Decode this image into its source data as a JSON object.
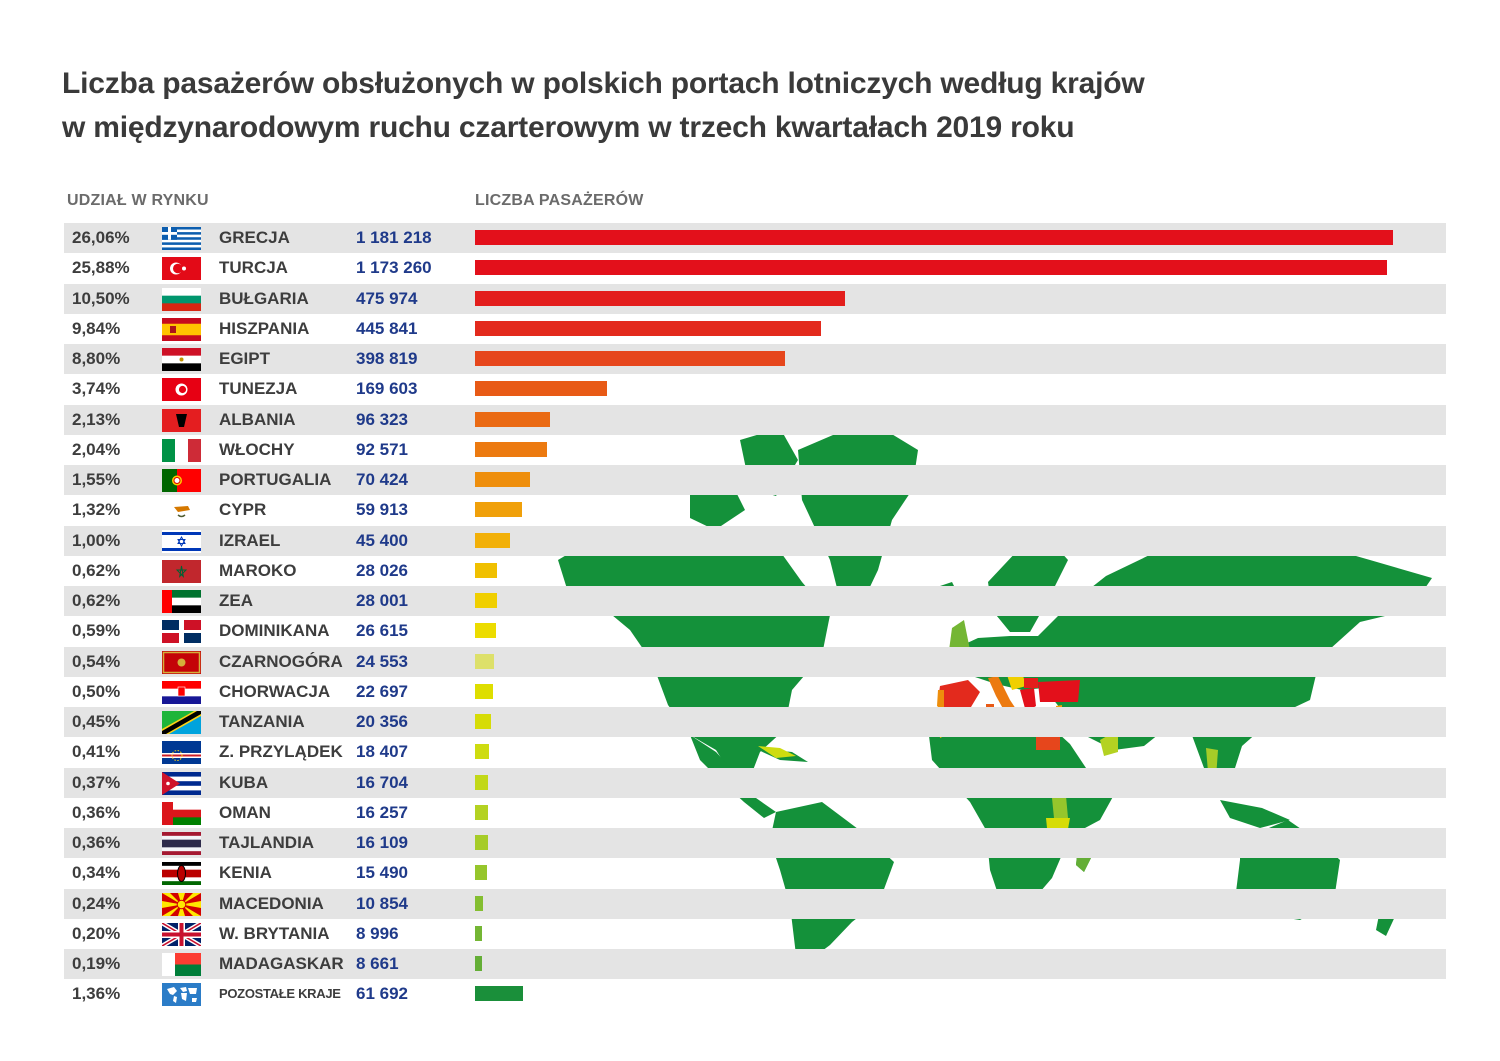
{
  "title_line1": "Liczba pasażerów obsłużonych w polskich portach lotniczych według krajów",
  "title_line2": "w międzynarodowym ruchu czarterowym w trzech kwartałach 2019 roku",
  "header_share": "UDZIAŁ W RYNKU",
  "header_count": "LICZBA PASAŻERÓW",
  "chart_data": {
    "type": "bar",
    "orientation": "horizontal",
    "title": "Liczba pasażerów obsłużonych w polskich portach lotniczych według krajów w międzynarodowym ruchu czarterowym w trzech kwartałach 2019 roku",
    "xlim": [
      0,
      1181218
    ],
    "rows": [
      {
        "share": "26,06%",
        "country": "GRECJA",
        "label": "1 181 218",
        "value": 1181218,
        "color": "#e3101b",
        "flag": "gr"
      },
      {
        "share": "25,88%",
        "country": "TURCJA",
        "label": "1 173 260",
        "value": 1173260,
        "color": "#e3101b",
        "flag": "tr"
      },
      {
        "share": "10,50%",
        "country": "BUŁGARIA",
        "label": "475 974",
        "value": 475974,
        "color": "#e31e1c",
        "flag": "bg"
      },
      {
        "share": "9,84%",
        "country": "HISZPANIA",
        "label": "445 841",
        "value": 445841,
        "color": "#e32a1d",
        "flag": "es"
      },
      {
        "share": "8,80%",
        "country": "EGIPT",
        "label": "398 819",
        "value": 398819,
        "color": "#e6461c",
        "flag": "eg"
      },
      {
        "share": "3,74%",
        "country": "TUNEZJA",
        "label": "169 603",
        "value": 169603,
        "color": "#e85a16",
        "flag": "tn"
      },
      {
        "share": "2,13%",
        "country": "ALBANIA",
        "label": "96 323",
        "value": 96323,
        "color": "#ea6a13",
        "flag": "al"
      },
      {
        "share": "2,04%",
        "country": "WŁOCHY",
        "label": "92 571",
        "value": 92571,
        "color": "#ec7a10",
        "flag": "it"
      },
      {
        "share": "1,55%",
        "country": "PORTUGALIA",
        "label": "70 424",
        "value": 70424,
        "color": "#ee8e0c",
        "flag": "pt"
      },
      {
        "share": "1,32%",
        "country": "CYPR",
        "label": "59 913",
        "value": 59913,
        "color": "#f0a00a",
        "flag": "cy"
      },
      {
        "share": "1,00%",
        "country": "IZRAEL",
        "label": "45 400",
        "value": 45400,
        "color": "#f2b008",
        "flag": "il"
      },
      {
        "share": "0,62%",
        "country": "MAROKO",
        "label": "28 026",
        "value": 28026,
        "color": "#f0c000",
        "flag": "ma"
      },
      {
        "share": "0,62%",
        "country": "ZEA",
        "label": "28 001",
        "value": 28001,
        "color": "#f0cf00",
        "flag": "ae"
      },
      {
        "share": "0,59%",
        "country": "DOMINIKANA",
        "label": "26 615",
        "value": 26615,
        "color": "#ecdc00",
        "flag": "do"
      },
      {
        "share": "0,54%",
        "country": "CZARNOGÓRA",
        "label": "24 553",
        "value": 24553,
        "color": "#dde06a",
        "flag": "me"
      },
      {
        "share": "0,50%",
        "country": "CHORWACJA",
        "label": "22 697",
        "value": 22697,
        "color": "#dede00",
        "flag": "hr"
      },
      {
        "share": "0,45%",
        "country": "TANZANIA",
        "label": "20 356",
        "value": 20356,
        "color": "#d6dc06",
        "flag": "tz"
      },
      {
        "share": "0,41%",
        "country": "Z. PRZYLĄDEK",
        "label": "18 407",
        "value": 18407,
        "color": "#cedc10",
        "flag": "cv"
      },
      {
        "share": "0,37%",
        "country": "KUBA",
        "label": "16 704",
        "value": 16704,
        "color": "#c2d818",
        "flag": "cu"
      },
      {
        "share": "0,36%",
        "country": "OMAN",
        "label": "16 257",
        "value": 16257,
        "color": "#b4d222",
        "flag": "om"
      },
      {
        "share": "0,36%",
        "country": "TAJLANDIA",
        "label": "16 109",
        "value": 16109,
        "color": "#a6cc28",
        "flag": "th"
      },
      {
        "share": "0,34%",
        "country": "KENIA",
        "label": "15 490",
        "value": 15490,
        "color": "#96c62c",
        "flag": "ke"
      },
      {
        "share": "0,24%",
        "country": "MACEDONIA",
        "label": "10 854",
        "value": 10854,
        "color": "#84be30",
        "flag": "mk"
      },
      {
        "share": "0,20%",
        "country": "W. BRYTANIA",
        "label": "8 996",
        "value": 8996,
        "color": "#74b634",
        "flag": "gb"
      },
      {
        "share": "0,19%",
        "country": "MADAGASKAR",
        "label": "8 661",
        "value": 8661,
        "color": "#64ae36",
        "flag": "mg"
      },
      {
        "share": "1,36%",
        "country": "POZOSTAŁE KRAJE",
        "label": "61 692",
        "value": 61692,
        "color": "#1a8f3a",
        "flag": "world"
      }
    ]
  },
  "colors": {
    "map_land": "#14913a",
    "row_stripe": "#e4e4e4",
    "number_text": "#1f3a8a"
  }
}
